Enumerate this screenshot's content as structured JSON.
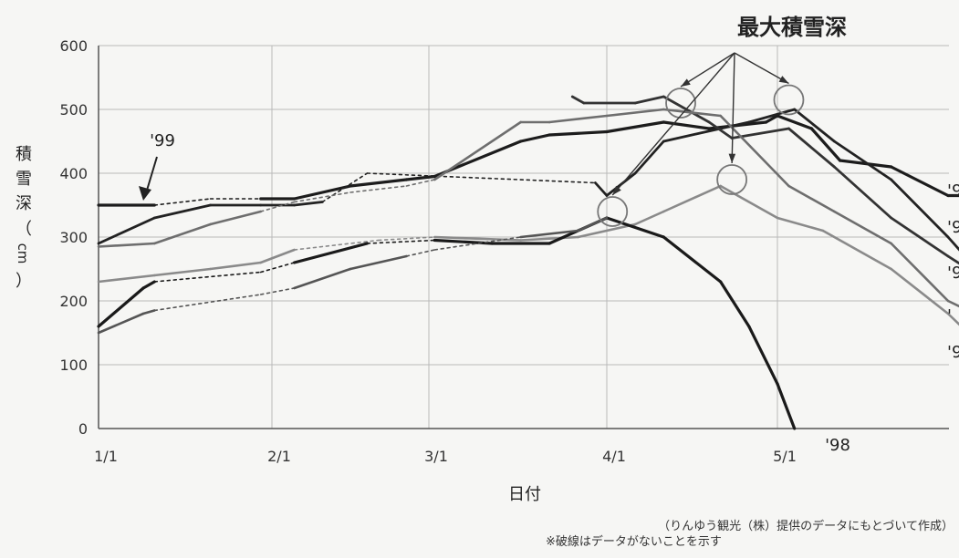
{
  "chart_data": {
    "type": "line",
    "title": "",
    "annotation": "最大積雪深",
    "xlabel": "日付",
    "ylabel_chars": [
      "積",
      "雪",
      "深",
      "（",
      "cm",
      "）"
    ],
    "x_ticks": [
      "1/1",
      "2/1",
      "3/1",
      "4/1",
      "5/1"
    ],
    "y_ticks": [
      0,
      100,
      200,
      300,
      400,
      500,
      600
    ],
    "ylim": [
      0,
      600
    ],
    "xlim_days": [
      0,
      150
    ],
    "grid": true,
    "notes": [
      "（りんゆう観光（株）提供のデータにもとづいて作成）",
      "※破線はデータがないことを示す"
    ],
    "series": [
      {
        "name": "'99",
        "color": "#1c1c1c",
        "width": 3.2,
        "points": [
          [
            0,
            350
          ],
          [
            10,
            350
          ],
          [
            20,
            360
          ],
          [
            29,
            360
          ],
          [
            35,
            360
          ],
          [
            45,
            380
          ],
          [
            55,
            390
          ],
          [
            60,
            395
          ],
          [
            75,
            450
          ],
          [
            80,
            460
          ],
          [
            90,
            465
          ],
          [
            100,
            480
          ],
          [
            108,
            470
          ],
          [
            118,
            480
          ],
          [
            120,
            490
          ],
          [
            126,
            470
          ],
          [
            131,
            420
          ],
          [
            140,
            410
          ],
          [
            150,
            365
          ],
          [
            157,
            365
          ]
        ],
        "dashed": [
          [
            1,
            2,
            3
          ]
        ]
      },
      {
        "name": "",
        "color": "#222222",
        "width": 2.8,
        "points": [
          [
            0,
            290
          ],
          [
            10,
            330
          ],
          [
            20,
            350
          ],
          [
            29,
            350
          ],
          [
            35,
            350
          ],
          [
            40,
            355
          ],
          [
            48,
            400
          ],
          [
            88,
            385
          ],
          [
            90,
            365
          ],
          [
            95,
            400
          ],
          [
            100,
            450
          ],
          [
            115,
            480
          ],
          [
            123,
            500
          ],
          [
            130,
            450
          ],
          [
            140,
            390
          ],
          [
            150,
            300
          ],
          [
            157,
            230
          ]
        ],
        "dashed": [
          [
            5,
            6,
            7
          ]
        ]
      },
      {
        "name": "",
        "color": "#333333",
        "width": 2.8,
        "points": [
          [
            84,
            520
          ],
          [
            86,
            510
          ],
          [
            95,
            510
          ],
          [
            100,
            520
          ],
          [
            108,
            480
          ],
          [
            112,
            455
          ],
          [
            122,
            470
          ],
          [
            130,
            410
          ],
          [
            140,
            330
          ],
          [
            150,
            270
          ],
          [
            157,
            230
          ]
        ],
        "dashed": []
      },
      {
        "name": "",
        "color": "#6e6e6e",
        "width": 2.6,
        "points": [
          [
            0,
            285
          ],
          [
            10,
            290
          ],
          [
            20,
            320
          ],
          [
            29,
            340
          ],
          [
            35,
            355
          ],
          [
            45,
            370
          ],
          [
            55,
            380
          ],
          [
            60,
            390
          ],
          [
            75,
            480
          ],
          [
            80,
            480
          ],
          [
            90,
            490
          ],
          [
            100,
            500
          ],
          [
            110,
            490
          ],
          [
            122,
            380
          ],
          [
            130,
            340
          ],
          [
            140,
            290
          ],
          [
            150,
            200
          ],
          [
            157,
            170
          ]
        ],
        "dashed": [
          [
            3,
            4,
            5,
            6,
            7
          ]
        ]
      },
      {
        "name": "",
        "color": "#8a8a8a",
        "width": 2.6,
        "points": [
          [
            0,
            230
          ],
          [
            10,
            240
          ],
          [
            20,
            250
          ],
          [
            29,
            260
          ],
          [
            35,
            280
          ],
          [
            50,
            295
          ],
          [
            60,
            300
          ],
          [
            75,
            295
          ],
          [
            85,
            300
          ],
          [
            95,
            320
          ],
          [
            100,
            340
          ],
          [
            110,
            380
          ],
          [
            120,
            330
          ],
          [
            128,
            310
          ],
          [
            140,
            250
          ],
          [
            150,
            180
          ],
          [
            157,
            120
          ]
        ],
        "dashed": [
          [
            4,
            5,
            6
          ]
        ]
      },
      {
        "name": "'98",
        "color": "#1a1a1a",
        "width": 3.2,
        "points": [
          [
            0,
            160
          ],
          [
            8,
            220
          ],
          [
            10,
            230
          ],
          [
            29,
            245
          ],
          [
            35,
            260
          ],
          [
            48,
            290
          ],
          [
            60,
            295
          ],
          [
            70,
            290
          ],
          [
            80,
            290
          ],
          [
            90,
            330
          ],
          [
            100,
            300
          ],
          [
            110,
            230
          ],
          [
            115,
            160
          ],
          [
            120,
            70
          ],
          [
            123,
            0
          ]
        ],
        "dashed": [
          [
            2,
            3,
            4
          ],
          [
            5,
            6
          ]
        ]
      },
      {
        "name": "",
        "color": "#555555",
        "width": 2.6,
        "points": [
          [
            0,
            150
          ],
          [
            8,
            180
          ],
          [
            10,
            185
          ],
          [
            29,
            210
          ],
          [
            35,
            220
          ],
          [
            45,
            250
          ],
          [
            55,
            270
          ],
          [
            60,
            280
          ],
          [
            75,
            300
          ],
          [
            85,
            310
          ],
          [
            90,
            330
          ]
        ],
        "dashed": [
          [
            2,
            3,
            4
          ],
          [
            6,
            7,
            8
          ]
        ]
      }
    ],
    "max_markers": [
      [
        91,
        340
      ],
      [
        103,
        510
      ],
      [
        112,
        390
      ],
      [
        122,
        515
      ]
    ],
    "right_labels": [
      "'9",
      "'9",
      "'9",
      "'",
      "'9"
    ]
  }
}
